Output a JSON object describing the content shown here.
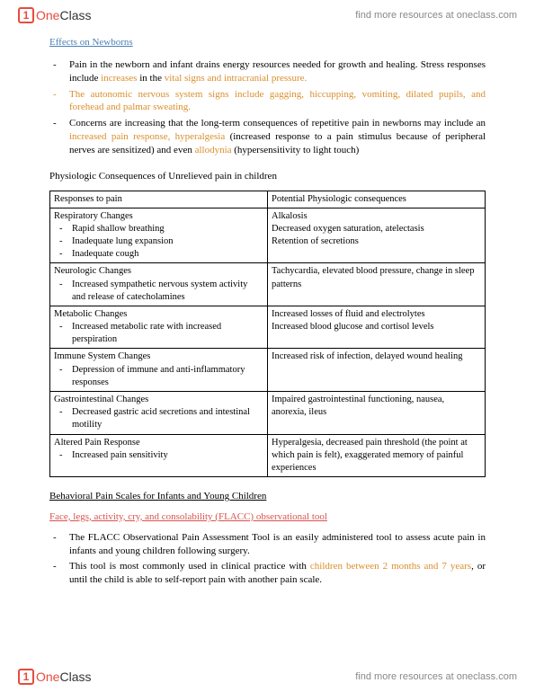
{
  "brand": {
    "one": "One",
    "class": "Class",
    "findText": "find more resources at oneclass.com"
  },
  "sections": {
    "newborns": {
      "title": "Effects on Newborns",
      "b1_a": "Pain in the newborn and infant drains energy resources needed for growth and healing. Stress responses include ",
      "b1_b": "increases",
      "b1_c": " in the ",
      "b1_d": "vital signs and intracranial pressure.",
      "b2": "The autonomic nervous system signs include gagging, hiccupping, vomiting, dilated pupils, and forehead and palmar sweating.",
      "b3_a": "Concerns are increasing that the long-term consequences of repetitive pain in newborns  may include  an  ",
      "b3_b": "increased  pain  response,  hyperalgesia",
      "b3_c": " (increased response to a pain stimulus because of peripheral nerves are sensitized) and even ",
      "b3_d": "allodynia",
      "b3_e": " (hypersensitivity to light touch)"
    },
    "physTitle": "Physiologic Consequences of Unrelieved pain in children",
    "table": {
      "h1": "Responses to pain",
      "h2": "Potential Physiologic consequences",
      "r1l_t": "Respiratory Changes",
      "r1l_1": "Rapid shallow breathing",
      "r1l_2": "Inadequate lung expansion",
      "r1l_3": "Inadequate cough",
      "r1r_1": "Alkalosis",
      "r1r_2": "Decreased oxygen saturation, atelectasis",
      "r1r_3": "Retention of secretions",
      "r2l_t": "Neurologic Changes",
      "r2l_1": "Increased sympathetic nervous system activity and release of catecholamines",
      "r2r": "Tachycardia, elevated blood pressure, change in sleep patterns",
      "r3l_t": "Metabolic Changes",
      "r3l_1": "Increased metabolic rate with increased perspiration",
      "r3r_1": "Increased losses of fluid and electrolytes",
      "r3r_2": "Increased blood glucose and cortisol levels",
      "r4l_t": "Immune System Changes",
      "r4l_1": "Depression of immune and anti-inflammatory responses",
      "r4r": "Increased risk of infection, delayed wound healing",
      "r5l_t": "Gastrointestinal Changes",
      "r5l_1": "Decreased gastric acid secretions and intestinal motility",
      "r5r": "Impaired gastrointestinal functioning, nausea, anorexia, ileus",
      "r6l_t": "Altered Pain Response",
      "r6l_1": "Increased pain sensitivity",
      "r6r": "Hyperalgesia, decreased pain threshold (the point at which pain is felt), exaggerated memory of painful experiences"
    },
    "behavioral": {
      "title": "Behavioral Pain Scales for Infants and Young Children",
      "flaccTitle": "Face, legs, activity, cry, and consolability (FLACC) observational tool",
      "b1": "The FLACC Observational Pain Assessment Tool is an easily administered tool to assess acute pain in infants and young children following surgery.",
      "b2_a": "This tool is most commonly used in clinical practice with ",
      "b2_b": "children between 2 months and 7 years",
      "b2_c": ", or until the child is able to self-report pain with another pain scale."
    }
  }
}
